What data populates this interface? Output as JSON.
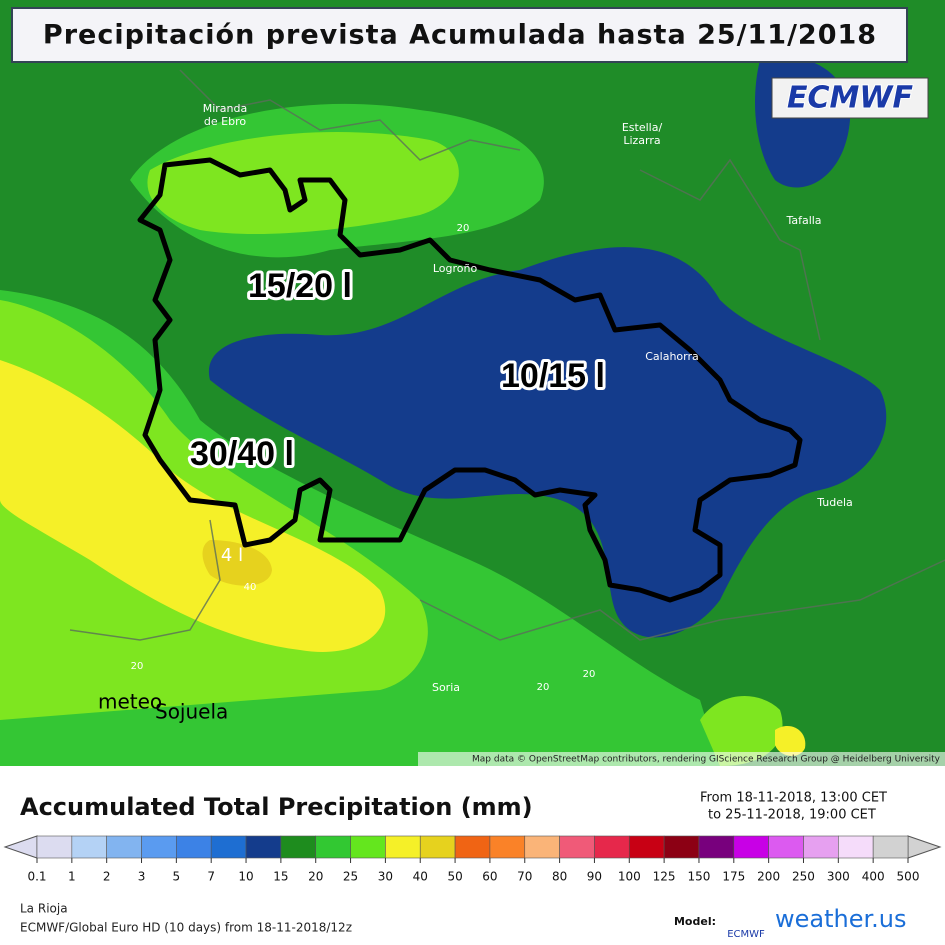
{
  "header": {
    "title": "Precipitación prevista Acumulada hasta 25/11/2018",
    "badge": "ECMWF"
  },
  "map": {
    "places": [
      "Miranda\nde Ebro",
      "Estella/\nLizarra",
      "Tafalla",
      "Logroño",
      "Calahorra",
      "Tudela",
      "Soria"
    ],
    "contour_labels": [
      "20",
      "20",
      "40",
      "20",
      "20"
    ],
    "zone_labels": [
      "15/20 l",
      "10/15 l",
      "30/40 l",
      "4 l"
    ],
    "watermark": [
      "meteo",
      "Sojuela"
    ],
    "attribution": "Map data © OpenStreetMap contributors, rendering GIScience Research Group @ Heidelberg University"
  },
  "legend": {
    "title": "Accumulated Total Precipitation (mm)",
    "period": [
      "From 18-11-2018, 13:00 CET",
      "to 25-11-2018, 19:00 CET"
    ],
    "ticks": [
      0.1,
      1,
      2,
      3,
      5,
      7,
      10,
      15,
      20,
      25,
      30,
      40,
      50,
      60,
      70,
      80,
      90,
      100,
      125,
      150,
      175,
      200,
      250,
      300,
      400,
      500
    ],
    "colors": [
      "#dcdcf0",
      "#b4d2f5",
      "#82b4f0",
      "#5a9bf0",
      "#3c82e6",
      "#1e6ed2",
      "#143c8c",
      "#1e8c1e",
      "#32c832",
      "#64e61e",
      "#f5f028",
      "#e6d21e",
      "#f06414",
      "#fa8228",
      "#fab478",
      "#f05a78",
      "#e6284b",
      "#c80014",
      "#8c0014",
      "#78007d",
      "#c800e6",
      "#dc5af0",
      "#e6a0f0",
      "#f5dcfa",
      "#d2d2d2"
    ]
  },
  "footer": {
    "region": "La Rioja",
    "model_run": "ECMWF/Global Euro HD (10 days) from 18-11-2018/12z",
    "model_label": "Model:",
    "model_logo": "ECMWF",
    "brand": "weather.us"
  }
}
